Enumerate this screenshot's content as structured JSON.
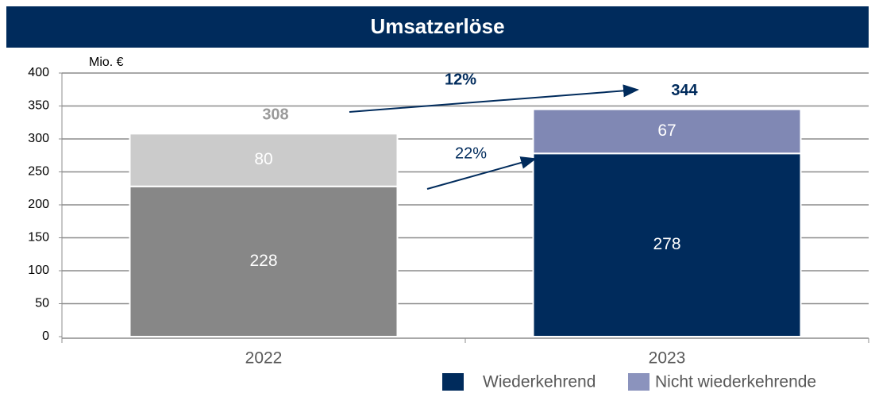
{
  "chart_data": {
    "type": "stacked_bar",
    "title": "Umsatzerlöse",
    "unit_label": "Mio. €",
    "categories": [
      "2022",
      "2023"
    ],
    "series": [
      {
        "name": "Wiederkehrend",
        "color": "#002b5c",
        "point_colors": [
          "#878787",
          "#002b5c"
        ],
        "values": [
          228,
          278
        ]
      },
      {
        "name": "Nicht wiederkehrende",
        "color": "#8b93bd",
        "point_colors": [
          "#cbcbcb",
          "#8088b4"
        ],
        "values": [
          80,
          67
        ]
      }
    ],
    "totals": [
      308,
      344
    ],
    "total_colors": [
      "#9a9a9a",
      "#002b5c"
    ],
    "annotations": [
      "12%",
      "22%"
    ],
    "ylim": [
      0,
      400
    ],
    "yticks": [
      0,
      50,
      100,
      150,
      200,
      250,
      300,
      350,
      400
    ],
    "grid": true
  }
}
